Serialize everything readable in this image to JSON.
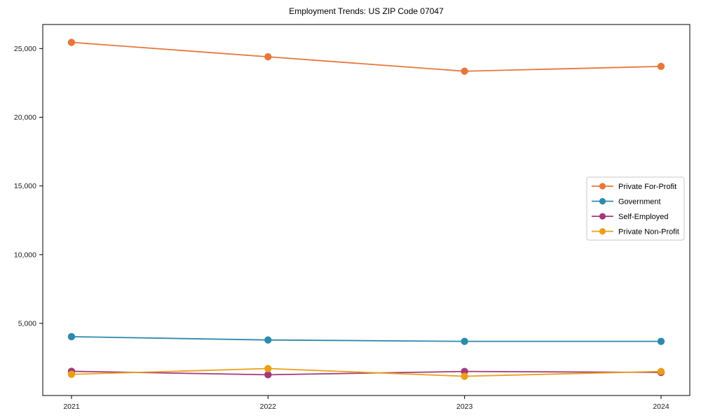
{
  "chart_data": {
    "type": "line",
    "title": "Employment Trends: US ZIP Code 07047",
    "x": [
      "2021",
      "2022",
      "2023",
      "2024"
    ],
    "series": [
      {
        "name": "Private For-Profit",
        "color": "#e8763b",
        "values": [
          25450,
          24400,
          23350,
          23700
        ]
      },
      {
        "name": "Government",
        "color": "#2e8aad",
        "values": [
          4030,
          3790,
          3690,
          3690
        ]
      },
      {
        "name": "Self-Employed",
        "color": "#a23a79",
        "values": [
          1510,
          1260,
          1500,
          1430
        ]
      },
      {
        "name": "Private Non-Profit",
        "color": "#eb9f19",
        "values": [
          1290,
          1710,
          1150,
          1500
        ]
      }
    ],
    "yticks": [
      5000,
      10000,
      15000,
      20000,
      25000
    ],
    "ytick_labels": [
      "5,000",
      "10,000",
      "15,000",
      "20,000",
      "25,000"
    ],
    "ylim": [
      -250,
      26750
    ],
    "xlabel": "",
    "ylabel": "",
    "grid": false,
    "legend_position": "center-right",
    "axis_color": "#000000",
    "tick_label_color": "#1a1a1a",
    "legend_border_color": "#c9c9c9",
    "plot_background": "#ffffff"
  }
}
